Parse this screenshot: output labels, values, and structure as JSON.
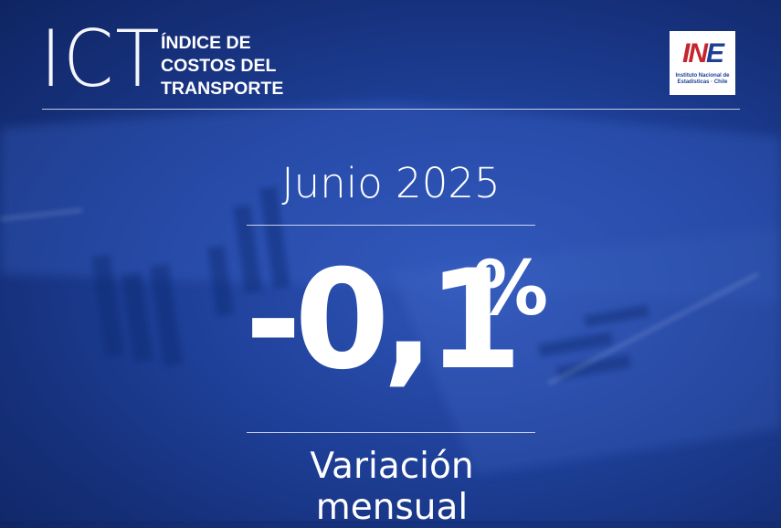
{
  "header": {
    "acronym": "ICT",
    "subtitle_lines": [
      "ÍNDICE DE",
      "COSTOS DEL",
      "TRANSPORTE"
    ]
  },
  "logo": {
    "mark_part1": "IN",
    "mark_part2": "E",
    "caption": "Instituto Nacional de Estadísticas · Chile"
  },
  "period": "Junio 2025",
  "indicator": {
    "value": "-0,1",
    "unit": "%",
    "label": "Variación mensual"
  },
  "colors": {
    "background": "#1e3f97",
    "logo_red": "#c4262e",
    "logo_blue": "#1f3f96"
  }
}
